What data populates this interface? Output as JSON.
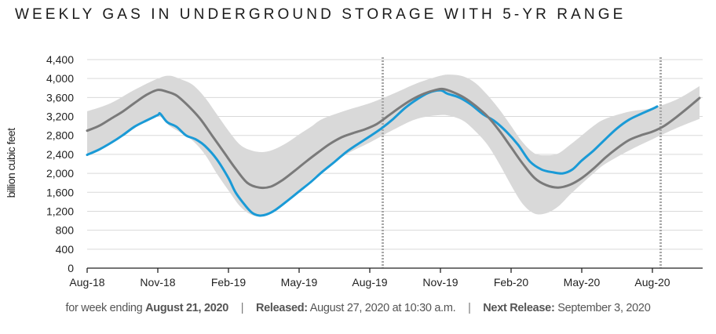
{
  "chart_data": {
    "type": "line",
    "title": "WEEKLY GAS IN UNDERGROUND STORAGE WITH 5-YR RANGE",
    "ylabel": "billion cubic feet",
    "xlabel": "",
    "ylim": [
      0,
      4400
    ],
    "yticks": [
      0,
      400,
      800,
      1200,
      1600,
      2000,
      2400,
      2800,
      3200,
      3600,
      4000,
      4400
    ],
    "ytick_labels": [
      "0",
      "400",
      "800",
      "1,200",
      "1,600",
      "2,000",
      "2,400",
      "2,800",
      "3,200",
      "3,600",
      "4,000",
      "4,400"
    ],
    "x_unit": "months since Aug-2018",
    "xlim": [
      0,
      26.2
    ],
    "xticks": [
      0,
      3,
      6,
      9,
      12,
      15,
      18,
      21,
      24
    ],
    "xtick_labels": [
      "Aug-18",
      "Nov-18",
      "Feb-19",
      "May-19",
      "Aug-19",
      "Nov-19",
      "Feb-20",
      "May-20",
      "Aug-20"
    ],
    "grid": "horizontal",
    "legend": "none",
    "markers": [
      {
        "name": "year-divider-2019",
        "x": 12.55
      },
      {
        "name": "year-divider-2020",
        "x": 24.35
      }
    ],
    "series": [
      {
        "name": "Working gas in storage (2018-2020)",
        "color": "#1a9ad6",
        "x": [
          0,
          0.5,
          1,
          1.5,
          2,
          2.5,
          3,
          3.1,
          3.4,
          3.8,
          4.2,
          4.6,
          5,
          5.5,
          6,
          6.3,
          6.7,
          7,
          7.3,
          7.6,
          8,
          8.5,
          9,
          9.5,
          10,
          10.5,
          11,
          11.5,
          12,
          12.5,
          13,
          13.5,
          14,
          14.5,
          15,
          15.3,
          15.8,
          16.3,
          16.8,
          17.3,
          17.8,
          18.3,
          18.8,
          19.3,
          19.8,
          20.2,
          20.6,
          21,
          21.5,
          22,
          22.5,
          23,
          23.5,
          24,
          24.2
        ],
        "values": [
          2390,
          2500,
          2640,
          2800,
          2980,
          3110,
          3230,
          3260,
          3080,
          2980,
          2800,
          2720,
          2580,
          2300,
          1900,
          1600,
          1330,
          1170,
          1110,
          1130,
          1230,
          1420,
          1620,
          1820,
          2040,
          2240,
          2450,
          2620,
          2780,
          2950,
          3150,
          3380,
          3560,
          3700,
          3750,
          3680,
          3600,
          3450,
          3250,
          3100,
          2880,
          2600,
          2250,
          2080,
          2020,
          2000,
          2080,
          2270,
          2480,
          2720,
          2950,
          3130,
          3250,
          3360,
          3410
        ]
      },
      {
        "name": "5-yr average",
        "color": "#7a7a7a",
        "x": [
          0,
          0.5,
          1,
          1.5,
          2,
          2.5,
          3,
          3.4,
          3.8,
          4.3,
          4.8,
          5.3,
          5.8,
          6.3,
          6.8,
          7.3,
          7.8,
          8.3,
          8.8,
          9.3,
          9.8,
          10.3,
          10.8,
          11.3,
          11.8,
          12.3,
          12.8,
          13.3,
          13.8,
          14.3,
          14.8,
          15.1,
          15.5,
          16,
          16.5,
          17,
          17.5,
          18,
          18.5,
          19,
          19.5,
          20,
          20.5,
          21,
          21.5,
          22,
          22.5,
          23,
          23.5,
          24,
          24.5,
          25,
          25.5,
          26
        ],
        "values": [
          2900,
          3000,
          3150,
          3300,
          3480,
          3650,
          3760,
          3720,
          3640,
          3420,
          3150,
          2800,
          2450,
          2100,
          1800,
          1700,
          1720,
          1860,
          2050,
          2250,
          2440,
          2620,
          2760,
          2850,
          2930,
          3040,
          3220,
          3400,
          3560,
          3680,
          3760,
          3780,
          3720,
          3600,
          3420,
          3200,
          2900,
          2550,
          2200,
          1900,
          1750,
          1700,
          1760,
          1900,
          2100,
          2330,
          2530,
          2700,
          2800,
          2880,
          3000,
          3180,
          3380,
          3590
        ]
      }
    ],
    "range": {
      "name": "5-yr min/max range",
      "color": "#d9d9d9",
      "x": [
        0,
        1,
        2,
        3,
        3.5,
        4,
        4.5,
        5,
        5.5,
        6,
        6.5,
        7,
        7.5,
        8,
        8.5,
        9,
        9.5,
        10,
        11,
        12,
        13,
        14,
        15,
        15.5,
        16,
        16.5,
        17,
        17.5,
        18,
        18.5,
        19,
        19.5,
        20,
        20.5,
        21,
        21.5,
        22,
        23,
        24,
        25,
        26
      ],
      "max": [
        3310,
        3480,
        3760,
        4000,
        4060,
        3980,
        3860,
        3600,
        3250,
        2900,
        2600,
        2480,
        2450,
        2520,
        2650,
        2820,
        2980,
        3150,
        3330,
        3480,
        3680,
        3900,
        4060,
        4080,
        4040,
        3900,
        3650,
        3350,
        3000,
        2650,
        2420,
        2380,
        2420,
        2600,
        2800,
        3000,
        3150,
        3300,
        3380,
        3550,
        3840
      ],
      "min": [
        2400,
        2620,
        2950,
        3200,
        3000,
        2850,
        2680,
        2400,
        2000,
        1640,
        1300,
        1120,
        1100,
        1240,
        1450,
        1650,
        1860,
        2060,
        2400,
        2650,
        2920,
        3150,
        3230,
        3200,
        3100,
        2880,
        2600,
        2200,
        1750,
        1350,
        1150,
        1160,
        1300,
        1550,
        1780,
        2000,
        2200,
        2480,
        2720,
        2950,
        3150
      ]
    }
  },
  "footer": {
    "prefix": "for week ending",
    "week_ending": "August 21, 2020",
    "sep1": "|",
    "released_label": "Released:",
    "released_value": "August 27, 2020 at 10:30 a.m.",
    "sep2": "|",
    "next_label": "Next Release:",
    "next_value": "September 3, 2020"
  }
}
